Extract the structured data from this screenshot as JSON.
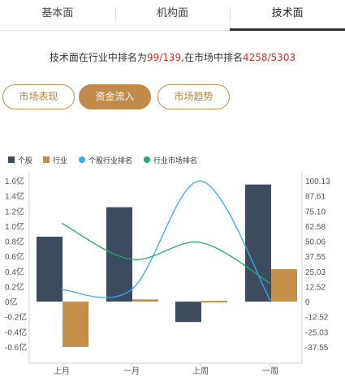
{
  "tabs": [
    {
      "label": "基本面"
    },
    {
      "label": "机构面"
    },
    {
      "label": "技术面"
    }
  ],
  "ranking": {
    "prefix": "技术面在行业中排名为",
    "industry_rank": "99/139",
    "middle": ",在市场中排名",
    "market_rank": "4258/5303"
  },
  "pills": [
    {
      "label": "市场表现"
    },
    {
      "label": "资金流入"
    },
    {
      "label": "市场趋势"
    }
  ],
  "colors": {
    "accent": "#c28a4b",
    "highlight": "#d9302e",
    "stock_bar": "#3d4b5e",
    "industry_bar": "#c28f4d",
    "stock_rank_line": "#42a5f5",
    "market_rank_line": "#26a96c"
  },
  "chart_data": {
    "type": "bar",
    "categories": [
      "上月",
      "一月",
      "上周",
      "一周"
    ],
    "series": [
      {
        "name": "个股",
        "kind": "bar",
        "axis": "left",
        "values": [
          0.86,
          1.25,
          -0.27,
          1.55
        ]
      },
      {
        "name": "行业",
        "kind": "bar",
        "axis": "left",
        "values": [
          -0.6,
          0.03,
          0.0,
          0.43
        ]
      },
      {
        "name": "个股行业排名",
        "kind": "line",
        "axis": "right",
        "values": [
          10,
          10,
          100,
          1
        ]
      },
      {
        "name": "行业市场排名",
        "kind": "line",
        "axis": "right",
        "values": [
          65,
          35,
          49,
          15
        ]
      }
    ],
    "left_axis": {
      "ticks": [
        "1.6亿",
        "1.4亿",
        "1.2亿",
        "1.0亿",
        "0.8亿",
        "0.6亿",
        "0.4亿",
        "0.2亿",
        "0亿",
        "-0.2亿",
        "-0.4亿",
        "-0.6亿"
      ],
      "ylim": [
        -0.7,
        1.7
      ]
    },
    "right_axis": {
      "ticks": [
        "100.13",
        "87.61",
        "75.10",
        "62.58",
        "50.06",
        "37.55",
        "25.03",
        "12.52",
        "0",
        "-12.52",
        "-25.03",
        "-37.55"
      ],
      "ylim": [
        -43.8,
        106.4
      ]
    },
    "legend_position": "top-left",
    "grid": false
  }
}
